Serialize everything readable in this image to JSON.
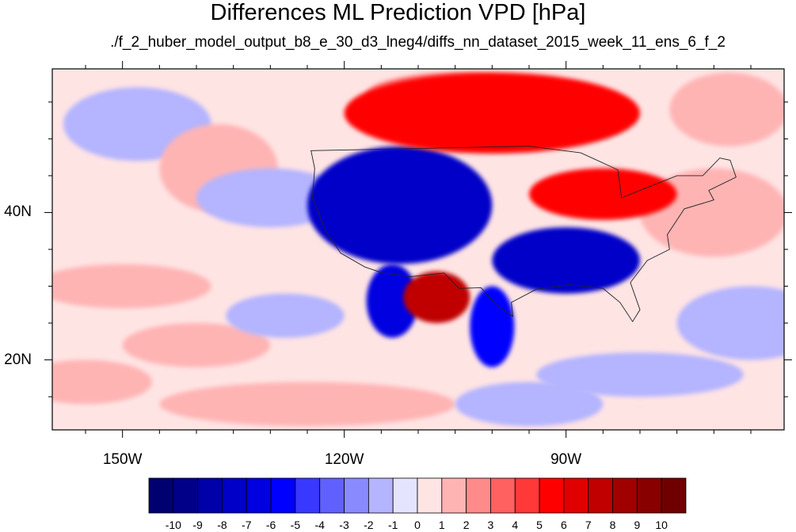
{
  "title": "Differences ML Prediction VPD [hPa]",
  "subtitle": "./f_2_huber_model_output_b8_e_30_d3_lneg4/diffs_nn_dataset_2015_week_11_ens_6_f_2",
  "axes": {
    "x_ticks": [
      {
        "label": "150W",
        "lon": -150
      },
      {
        "label": "120W",
        "lon": -120
      },
      {
        "label": "90W",
        "lon": -90
      }
    ],
    "y_ticks": [
      {
        "label": "40N",
        "lat": 40
      },
      {
        "label": "20N",
        "lat": 20
      }
    ],
    "lon_range": [
      -159.5,
      -60.5
    ],
    "lat_range": [
      10.5,
      59.5
    ]
  },
  "colorbar": {
    "labels": [
      "-10",
      "-9",
      "-8",
      "-7",
      "-6",
      "-5",
      "-4",
      "-3",
      "-2",
      "-1",
      "0",
      "1",
      "2",
      "3",
      "4",
      "5",
      "6",
      "7",
      "8",
      "9",
      "10"
    ],
    "colors": [
      "#000070",
      "#000088",
      "#0000a8",
      "#0000c8",
      "#0000e0",
      "#0000ff",
      "#3838ff",
      "#6060ff",
      "#8a8aff",
      "#b4b4ff",
      "#e4e4ff",
      "#ffe4e4",
      "#ffb4b4",
      "#ff8a8a",
      "#ff6060",
      "#ff3838",
      "#ff0000",
      "#e00000",
      "#c00000",
      "#a00000",
      "#880000",
      "#700000"
    ]
  },
  "chart_data": {
    "type": "heatmap",
    "title": "Differences ML Prediction VPD [hPa]",
    "subtitle": "./f_2_huber_model_output_b8_e_30_d3_lneg4/diffs_nn_dataset_2015_week_11_ens_6_f_2",
    "variable_units": "hPa",
    "x_range_lon": [
      -159.5,
      -60.5
    ],
    "y_range_lat": [
      10.5,
      59.5
    ],
    "value_range": [
      -10,
      10
    ],
    "regions": [
      {
        "name": "western-us-negative",
        "lon": [
          -125,
          -100
        ],
        "lat": [
          33,
          49
        ],
        "value": -8
      },
      {
        "name": "southern-central-us-negative",
        "lon": [
          -100,
          -80
        ],
        "lat": [
          29,
          38
        ],
        "value": -8
      },
      {
        "name": "texas-mexico-negative",
        "lon": [
          -103,
          -97
        ],
        "lat": [
          19,
          30
        ],
        "value": -6
      },
      {
        "name": "baja-negative",
        "lon": [
          -117,
          -110
        ],
        "lat": [
          23,
          33
        ],
        "value": -7
      },
      {
        "name": "northern-mexico-positive",
        "lon": [
          -112,
          -103
        ],
        "lat": [
          25,
          32
        ],
        "value": 7
      },
      {
        "name": "northern-canada-positive",
        "lon": [
          -120,
          -80
        ],
        "lat": [
          48,
          59
        ],
        "value": 5
      },
      {
        "name": "great-lakes-positive",
        "lon": [
          -95,
          -75
        ],
        "lat": [
          39,
          46
        ],
        "value": 5
      },
      {
        "name": "ocean-background",
        "lon": [
          -159.5,
          -60.5
        ],
        "lat": [
          10.5,
          59.5
        ],
        "value": 0.5
      }
    ]
  }
}
